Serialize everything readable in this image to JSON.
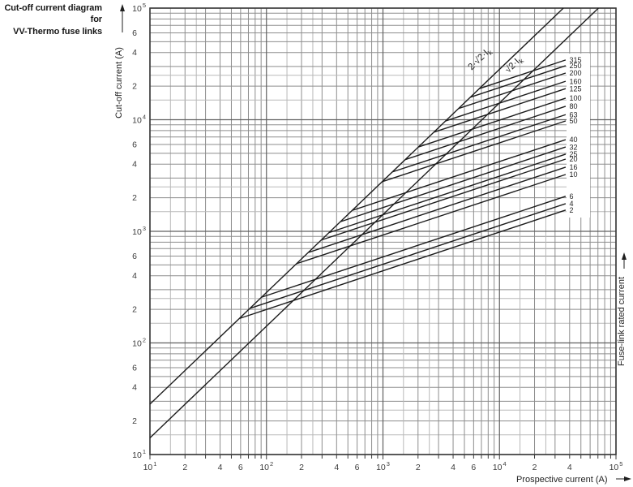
{
  "title": {
    "line1": "Cut-off current diagram for",
    "line2": "VV-Thermo fuse links"
  },
  "axes": {
    "x": {
      "label": "Prospective current (A)",
      "scale": "log",
      "min": 10,
      "max": 100000,
      "minor_labels": {
        "1": [
          2,
          4,
          6
        ],
        "2": [
          2,
          4,
          6
        ],
        "3": [
          2,
          4,
          6
        ],
        "4": [
          2,
          4
        ]
      }
    },
    "y": {
      "label": "Cut-off current (A)",
      "scale": "log",
      "min": 10,
      "max": 100000,
      "minor_labels": {
        "1": [
          2,
          4,
          6
        ],
        "2": [
          2,
          4,
          6
        ],
        "3": [
          2,
          4,
          6
        ],
        "4": [
          2,
          4,
          6
        ]
      }
    },
    "right_label": "Fuse-link rated current"
  },
  "colors": {
    "background": "#ffffff",
    "text": "#1f1f1f",
    "tick_text": "#3c3c3c",
    "curve": "#1c1c1c",
    "border": "#3a3a3a",
    "grid_major": "#606060",
    "grid_minor": "#8d8d8d",
    "grid_half_minor": "#b9b9b9"
  },
  "chart_data": {
    "type": "line",
    "title": "Cut-off current diagram for VV-Thermo fuse links",
    "x_axis": {
      "label": "Prospective current (A)",
      "scale": "log",
      "range": [
        10,
        100000
      ]
    },
    "y_axis": {
      "label": "Cut-off current (A)",
      "scale": "log",
      "range": [
        10,
        100000
      ]
    },
    "right_axis_label": "Fuse-link rated current",
    "grid": {
      "minors": [
        1.5,
        2,
        2.5,
        3,
        4,
        5,
        6,
        7,
        8,
        9
      ],
      "half_minors": [
        1.5,
        2.5
      ],
      "tick_minors": [
        2,
        3,
        4,
        5,
        6,
        7,
        8,
        9
      ]
    },
    "reference_lines": [
      {
        "label": "2·√2·I",
        "label_sub": "k",
        "relation": "y = 2√2 · x",
        "points": [
          [
            10,
            28.3
          ],
          [
            35360,
            100000
          ]
        ]
      },
      {
        "label": "√2·I",
        "label_sub": "k",
        "relation": "y = √2 · x",
        "points": [
          [
            10,
            14.1
          ],
          [
            70700,
            100000
          ]
        ]
      }
    ],
    "series": [
      {
        "rating": "315",
        "points": [
          [
            6720,
            19000
          ],
          [
            37000,
            34300
          ]
        ]
      },
      {
        "rating": "250",
        "points": [
          [
            5620,
            15900
          ],
          [
            37000,
            30500
          ]
        ]
      },
      {
        "rating": "200",
        "points": [
          [
            4450,
            12600
          ],
          [
            37000,
            26200
          ]
        ]
      },
      {
        "rating": "160",
        "points": [
          [
            3440,
            9740
          ],
          [
            37000,
            22100
          ]
        ]
      },
      {
        "rating": "125",
        "points": [
          [
            2740,
            7740
          ],
          [
            37000,
            19000
          ]
        ]
      },
      {
        "rating": "100",
        "points": [
          [
            2020,
            5700
          ],
          [
            37000,
            15600
          ]
        ]
      },
      {
        "rating": "80",
        "points": [
          [
            1560,
            4400
          ],
          [
            37000,
            13200
          ]
        ]
      },
      {
        "rating": "63",
        "points": [
          [
            1210,
            3410
          ],
          [
            37000,
            11100
          ]
        ]
      },
      {
        "rating": "50",
        "points": [
          [
            980,
            2780
          ],
          [
            37000,
            9750
          ]
        ]
      },
      {
        "rating": "40",
        "points": [
          [
            545,
            1540
          ],
          [
            37000,
            6630
          ]
        ]
      },
      {
        "rating": "32",
        "points": [
          [
            432,
            1220
          ],
          [
            37000,
            5700
          ]
        ]
      },
      {
        "rating": "25",
        "points": [
          [
            344,
            973
          ],
          [
            37000,
            4910
          ]
        ]
      },
      {
        "rating": "20",
        "points": [
          [
            295,
            835
          ],
          [
            37000,
            4440
          ]
        ]
      },
      {
        "rating": "16",
        "points": [
          [
            229,
            647
          ],
          [
            37000,
            3760
          ]
        ]
      },
      {
        "rating": "10",
        "points": [
          [
            181,
            513
          ],
          [
            37000,
            3230
          ]
        ]
      },
      {
        "rating": "6",
        "points": [
          [
            91,
            257
          ],
          [
            37000,
            2060
          ]
        ]
      },
      {
        "rating": "4",
        "points": [
          [
            72,
            204
          ],
          [
            37000,
            1770
          ]
        ]
      },
      {
        "rating": "2",
        "points": [
          [
            59,
            166
          ],
          [
            37000,
            1550
          ]
        ]
      }
    ]
  }
}
